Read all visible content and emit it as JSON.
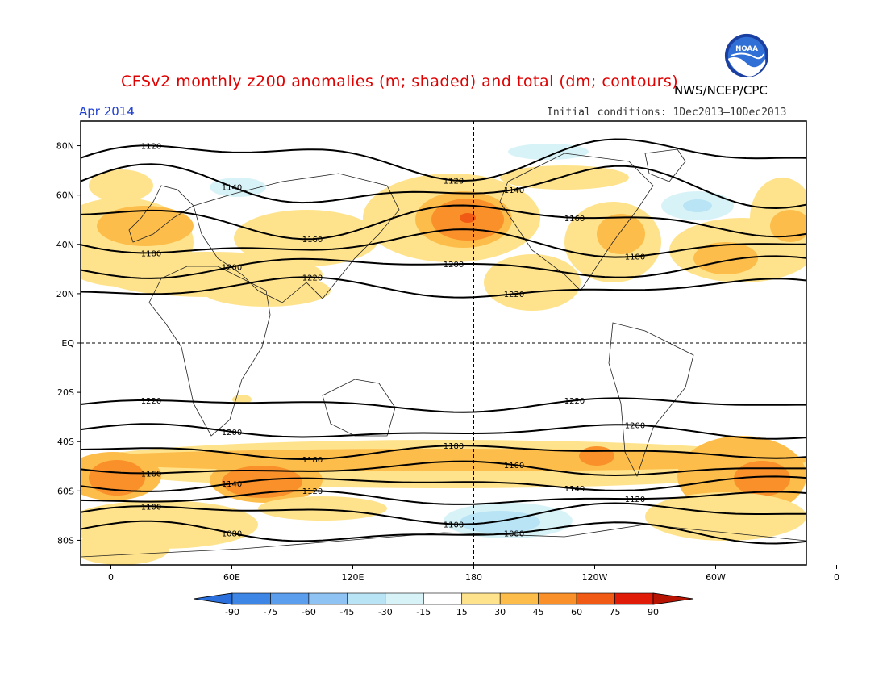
{
  "header": {
    "title": "CFSv2 monthly z200 anomalies (m; shaded) and total (dm; contours)",
    "agency": "NWS/NCEP/CPC",
    "period": "Apr 2014",
    "initial_conditions": "Initial conditions: 1Dec2013–10Dec2013",
    "logo_text": "NOAA"
  },
  "map": {
    "lon_ticks": [
      "0",
      "60E",
      "120E",
      "180",
      "120W",
      "60W",
      "0"
    ],
    "lat_ticks": [
      "80N",
      "60N",
      "40N",
      "20N",
      "EQ",
      "20S",
      "40S",
      "60S",
      "80S"
    ],
    "contours": [
      {
        "label": "1120",
        "lat": 75,
        "amp": 6
      },
      {
        "label": "1140",
        "lat": 63,
        "amp": 6
      },
      {
        "label": "1160",
        "lat": 50,
        "amp": 5
      },
      {
        "label": "1180",
        "lat": 40,
        "amp": 4
      },
      {
        "label": "1200",
        "lat": 31,
        "amp": 3
      },
      {
        "label": "1220",
        "lat": 22,
        "amp": 3
      },
      {
        "label": "1220",
        "lat": -25,
        "amp": 2
      },
      {
        "label": "1200",
        "lat": -36,
        "amp": 2
      },
      {
        "label": "1180",
        "lat": -44,
        "amp": 2
      },
      {
        "label": "1160",
        "lat": -51,
        "amp": 2
      },
      {
        "label": "1140",
        "lat": -57,
        "amp": 2
      },
      {
        "label": "1120",
        "lat": -63,
        "amp": 2
      },
      {
        "label": "1100",
        "lat": -69,
        "amp": 3
      },
      {
        "label": "1080",
        "lat": -77,
        "amp": 3
      }
    ]
  },
  "colorbar": {
    "ticks": [
      "-90",
      "-75",
      "-60",
      "-45",
      "-30",
      "-15",
      "15",
      "30",
      "45",
      "60",
      "75",
      "90"
    ],
    "colors": [
      "#2a6fdb",
      "#3d86e6",
      "#5b9eee",
      "#8ec3f3",
      "#b8e4f5",
      "#d8f3f7",
      "#ffffff",
      "#ffe38c",
      "#fdbd4a",
      "#f9902a",
      "#f05a14",
      "#e01c08",
      "#b81404"
    ]
  }
}
